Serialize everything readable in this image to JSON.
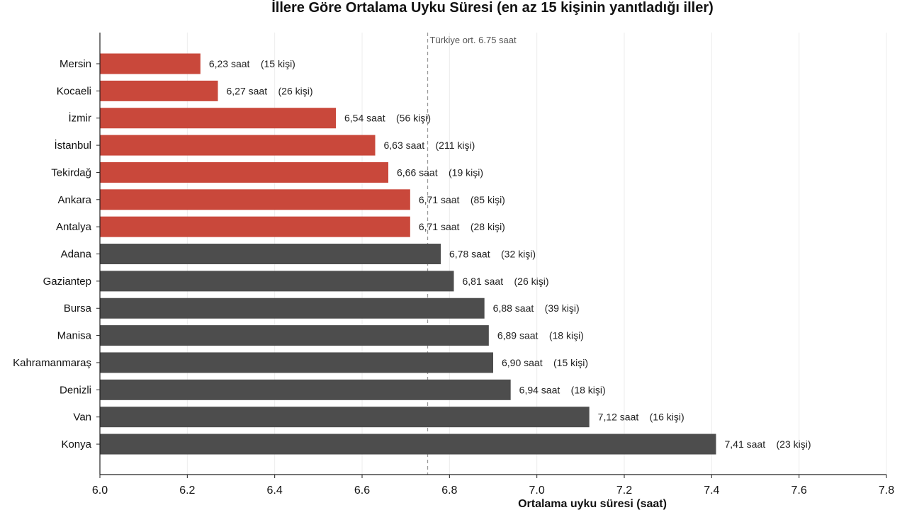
{
  "chart_data": {
    "type": "bar",
    "orientation": "horizontal",
    "title": "İllere Göre Ortalama Uyku Süresi  (en az 15 kişinin yanıtladığı iller)",
    "xlabel": "Ortalama uyku süresi (saat)",
    "ylabel": "",
    "xlim": [
      6.0,
      7.8
    ],
    "xticks": [
      "6.0",
      "6.2",
      "6.4",
      "6.6",
      "6.8",
      "7.0",
      "7.2",
      "7.4",
      "7.6",
      "7.8"
    ],
    "grid": "vertical",
    "reference_line": {
      "value": 6.75,
      "label": "Türkiye ort. 6.75 saat"
    },
    "colors": {
      "below_average": "#c9483b",
      "above_average": "#4d4d4d"
    },
    "categories": [
      "Mersin",
      "Kocaeli",
      "İzmir",
      "İstanbul",
      "Tekirdağ",
      "Ankara",
      "Antalya",
      "Adana",
      "Gaziantep",
      "Bursa",
      "Manisa",
      "Kahramanmaraş",
      "Denizli",
      "Van",
      "Konya"
    ],
    "values": [
      6.23,
      6.27,
      6.54,
      6.63,
      6.66,
      6.71,
      6.71,
      6.78,
      6.81,
      6.88,
      6.89,
      6.9,
      6.94,
      7.12,
      7.41
    ],
    "value_labels": [
      "6,23 saat",
      "6,27 saat",
      "6,54 saat",
      "6,63 saat",
      "6,66 saat",
      "6,71 saat",
      "6,71 saat",
      "6,78 saat",
      "6,81 saat",
      "6,88 saat",
      "6,89 saat",
      "6,90 saat",
      "6,94 saat",
      "7,12 saat",
      "7,41 saat"
    ],
    "count_labels": [
      "(15 kişi)",
      "(26 kişi)",
      "(56 kişi)",
      "(211 kişi)",
      "(19 kişi)",
      "(85 kişi)",
      "(28 kişi)",
      "(32 kişi)",
      "(26 kişi)",
      "(39 kişi)",
      "(18 kişi)",
      "(15 kişi)",
      "(18 kişi)",
      "(16 kişi)",
      "(23 kişi)"
    ]
  }
}
